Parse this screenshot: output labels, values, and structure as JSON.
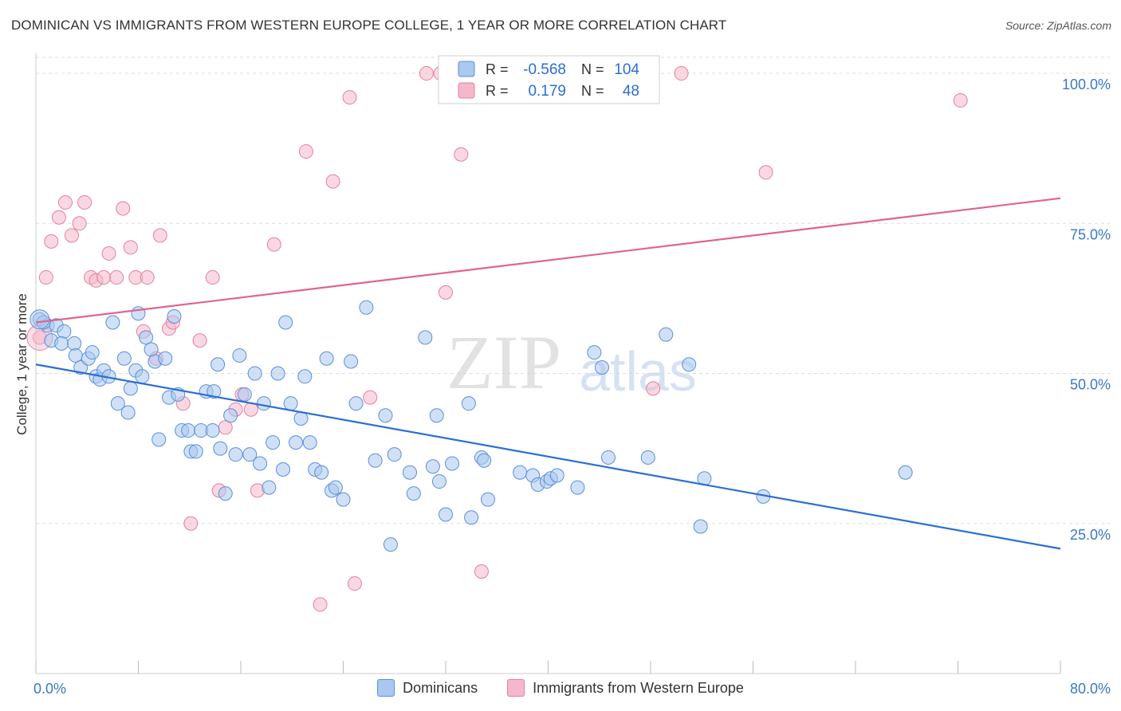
{
  "title": "DOMINICAN VS IMMIGRANTS FROM WESTERN EUROPE COLLEGE, 1 YEAR OR MORE CORRELATION CHART",
  "source": "Source: ZipAtlas.com",
  "watermark": {
    "zip": "ZIP",
    "atlas": "atlas"
  },
  "colors": {
    "blue_fill": "#aac8f0",
    "blue_stroke": "#5b8fd9",
    "blue_line": "#2b6fd1",
    "pink_fill": "#f5b8cb",
    "pink_stroke": "#e57fa0",
    "pink_line": "#e0648f",
    "tick_text": "#3a78c8",
    "grid": "#dddddd"
  },
  "legend_top": {
    "rows": [
      {
        "r_label": "R =",
        "r_value": "-0.568",
        "n_label": "N =",
        "n_value": "104",
        "series": "blue"
      },
      {
        "r_label": "R =",
        "r_value": "0.179",
        "n_label": "N =",
        "n_value": "48",
        "series": "pink"
      }
    ]
  },
  "legend_bottom": [
    {
      "label": "Dominicans",
      "series": "blue"
    },
    {
      "label": "Immigrants from Western Europe",
      "series": "pink"
    }
  ],
  "chart_data": {
    "type": "scatter",
    "title": "DOMINICAN VS IMMIGRANTS FROM WESTERN EUROPE COLLEGE, 1 YEAR OR MORE CORRELATION CHART",
    "xlabel": "",
    "ylabel": "College, 1 year or more",
    "xlim": [
      0,
      80
    ],
    "ylim": [
      0,
      102
    ],
    "x_tick_labels": [
      {
        "value": 0,
        "label": "0.0%"
      },
      {
        "value": 80,
        "label": "80.0%"
      }
    ],
    "y_tick_labels": [
      {
        "value": 25,
        "label": "25.0%"
      },
      {
        "value": 50,
        "label": "50.0%"
      },
      {
        "value": 75,
        "label": "75.0%"
      },
      {
        "value": 100,
        "label": "100.0%"
      }
    ],
    "series": [
      {
        "name": "Dominicans",
        "color": "blue",
        "trend": {
          "x": [
            0,
            80
          ],
          "y": [
            51.5,
            20.8
          ]
        },
        "points": [
          [
            0.3,
            59
          ],
          [
            0.9,
            58
          ],
          [
            1.6,
            58
          ],
          [
            1.2,
            55.5
          ],
          [
            2.2,
            57
          ],
          [
            2.0,
            55
          ],
          [
            3.0,
            55
          ],
          [
            3.1,
            53
          ],
          [
            3.5,
            51
          ],
          [
            4.1,
            52.5
          ],
          [
            4.4,
            53.5
          ],
          [
            4.7,
            49.5
          ],
          [
            5.0,
            49
          ],
          [
            5.3,
            50.5
          ],
          [
            5.7,
            49.5
          ],
          [
            6.0,
            58.5
          ],
          [
            6.4,
            45
          ],
          [
            6.9,
            52.5
          ],
          [
            7.2,
            43.5
          ],
          [
            7.4,
            47.5
          ],
          [
            7.8,
            50.5
          ],
          [
            8.0,
            60
          ],
          [
            8.3,
            49.5
          ],
          [
            8.6,
            56
          ],
          [
            9.0,
            54
          ],
          [
            9.3,
            52
          ],
          [
            9.6,
            39
          ],
          [
            10.1,
            52.5
          ],
          [
            10.4,
            46
          ],
          [
            10.8,
            59.5
          ],
          [
            11.1,
            46.5
          ],
          [
            11.4,
            40.5
          ],
          [
            11.9,
            40.5
          ],
          [
            12.1,
            37
          ],
          [
            12.5,
            37
          ],
          [
            12.9,
            40.5
          ],
          [
            13.3,
            47
          ],
          [
            13.8,
            40.5
          ],
          [
            14.2,
            51.5
          ],
          [
            14.4,
            37.5
          ],
          [
            14.8,
            30
          ],
          [
            15.2,
            43
          ],
          [
            15.6,
            36.5
          ],
          [
            15.9,
            53
          ],
          [
            16.3,
            46.5
          ],
          [
            16.7,
            36.5
          ],
          [
            17.1,
            50
          ],
          [
            17.5,
            35
          ],
          [
            17.8,
            45
          ],
          [
            18.2,
            31
          ],
          [
            18.5,
            38.5
          ],
          [
            18.9,
            50
          ],
          [
            19.3,
            34
          ],
          [
            19.5,
            58.5
          ],
          [
            19.9,
            45
          ],
          [
            20.3,
            38.5
          ],
          [
            20.7,
            42.5
          ],
          [
            21.0,
            49.5
          ],
          [
            21.4,
            38.5
          ],
          [
            21.8,
            34
          ],
          [
            22.3,
            33.5
          ],
          [
            22.7,
            52.5
          ],
          [
            23.1,
            30.5
          ],
          [
            23.4,
            31
          ],
          [
            24.0,
            29
          ],
          [
            24.6,
            52
          ],
          [
            25.0,
            45
          ],
          [
            25.8,
            61
          ],
          [
            26.5,
            35.5
          ],
          [
            27.3,
            43
          ],
          [
            27.7,
            21.5
          ],
          [
            28.0,
            36.5
          ],
          [
            29.2,
            33.5
          ],
          [
            29.5,
            30
          ],
          [
            30.4,
            56
          ],
          [
            31.0,
            34.5
          ],
          [
            31.3,
            43
          ],
          [
            31.5,
            32
          ],
          [
            32.0,
            26.5
          ],
          [
            32.5,
            35
          ],
          [
            33.8,
            45
          ],
          [
            34.0,
            26
          ],
          [
            34.8,
            36
          ],
          [
            35.0,
            35.5
          ],
          [
            35.3,
            29
          ],
          [
            37.8,
            33.5
          ],
          [
            38.8,
            33
          ],
          [
            39.2,
            31.5
          ],
          [
            39.9,
            32
          ],
          [
            40.2,
            32.5
          ],
          [
            40.7,
            33
          ],
          [
            42.3,
            31
          ],
          [
            43.6,
            53.5
          ],
          [
            44.2,
            51
          ],
          [
            44.7,
            36
          ],
          [
            47.8,
            36
          ],
          [
            49.2,
            56.5
          ],
          [
            51.0,
            51.5
          ],
          [
            51.9,
            24.5
          ],
          [
            52.2,
            32.5
          ],
          [
            56.8,
            29.5
          ],
          [
            67.9,
            33.5
          ],
          [
            0.6,
            58.5
          ],
          [
            13.9,
            47
          ]
        ]
      },
      {
        "name": "Immigrants from Western Europe",
        "color": "pink",
        "trend": {
          "x": [
            0,
            80
          ],
          "y": [
            58.5,
            79.2
          ]
        },
        "points": [
          [
            0.3,
            56
          ],
          [
            0.8,
            66
          ],
          [
            1.2,
            72
          ],
          [
            1.8,
            76
          ],
          [
            2.3,
            78.5
          ],
          [
            2.8,
            73
          ],
          [
            3.4,
            75
          ],
          [
            3.8,
            78.5
          ],
          [
            4.3,
            66
          ],
          [
            4.7,
            65.5
          ],
          [
            5.3,
            66
          ],
          [
            5.7,
            70
          ],
          [
            6.3,
            66
          ],
          [
            6.8,
            77.5
          ],
          [
            7.4,
            71
          ],
          [
            7.8,
            66
          ],
          [
            8.4,
            57
          ],
          [
            8.7,
            66
          ],
          [
            9.4,
            52.5
          ],
          [
            9.7,
            73
          ],
          [
            10.4,
            57.5
          ],
          [
            10.7,
            58.5
          ],
          [
            11.5,
            45
          ],
          [
            12.1,
            25
          ],
          [
            12.8,
            55.5
          ],
          [
            13.8,
            66
          ],
          [
            14.3,
            30.5
          ],
          [
            14.8,
            41
          ],
          [
            15.6,
            44
          ],
          [
            16.1,
            46.5
          ],
          [
            16.8,
            44
          ],
          [
            17.3,
            30.5
          ],
          [
            18.6,
            71.5
          ],
          [
            21.1,
            87
          ],
          [
            22.2,
            11.5
          ],
          [
            23.2,
            82
          ],
          [
            24.5,
            96
          ],
          [
            24.9,
            15
          ],
          [
            26.1,
            46
          ],
          [
            30.5,
            100
          ],
          [
            31.6,
            100
          ],
          [
            32.0,
            63.5
          ],
          [
            33.2,
            86.5
          ],
          [
            34.8,
            17
          ],
          [
            48.2,
            47.5
          ],
          [
            50.4,
            100
          ],
          [
            57.0,
            83.5
          ],
          [
            72.2,
            95.5
          ]
        ]
      }
    ]
  }
}
